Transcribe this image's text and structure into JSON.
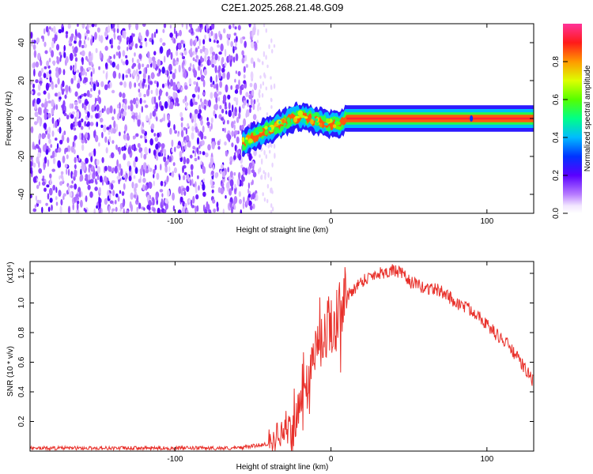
{
  "title": "C2E1.2025.268.21.48.G09",
  "chart_data": [
    {
      "type": "heatmap",
      "xlabel": "Height of straight line (km)",
      "ylabel": "Frequency (Hz)",
      "xlim": [
        -193,
        130
      ],
      "ylim": [
        -50,
        50
      ],
      "xticks": [
        -100,
        0,
        100
      ],
      "xtick_labels": [
        "-100",
        "0",
        "100"
      ],
      "yticks": [
        -40,
        -20,
        0,
        20,
        40
      ],
      "ytick_labels": [
        "-40",
        "-20",
        "0",
        "20",
        "40"
      ],
      "grid": false,
      "colorbar": {
        "label": "Normalized spectral amplitude",
        "range": [
          0,
          1
        ],
        "ticks": [
          0.0,
          0.2,
          0.4,
          0.6,
          0.8
        ],
        "tick_labels": [
          "0.0",
          "0.2",
          "0.4",
          "0.6",
          "0.8"
        ]
      },
      "features": {
        "noise_region_x": [
          -193,
          -48
        ],
        "noise_amplitude": 0.08,
        "signal_ridge": {
          "x": [
            -57,
            -50,
            -45,
            -40,
            -35,
            -30,
            -25,
            -20,
            -15,
            -10,
            -5,
            0,
            5,
            10,
            130
          ],
          "frequency": [
            -13,
            -10,
            -8,
            -6,
            -4,
            -2,
            0,
            1,
            0,
            -1,
            -2,
            -3,
            -3,
            0,
            0
          ],
          "peak_amplitude": 1.0
        },
        "spot": {
          "x": 90,
          "frequency": 0,
          "amplitude": 0.15
        }
      }
    },
    {
      "type": "line",
      "xlabel": "Height of straight line (km)",
      "ylabel": "SNR (10 * v/v)",
      "y_multiplier": "(x10⁴)",
      "xlim": [
        -193,
        130
      ],
      "ylim": [
        0,
        1.28
      ],
      "xticks": [
        -100,
        0,
        100
      ],
      "xtick_labels": [
        "-100",
        "0",
        "100"
      ],
      "yticks": [
        0.2,
        0.4,
        0.6,
        0.8,
        1.0,
        1.2
      ],
      "ytick_labels": [
        "0.2",
        "0.4",
        "0.6",
        "0.8",
        "1.0",
        "1.2"
      ],
      "grid": false,
      "color": "#e8302a",
      "series": [
        {
          "x": [
            -193,
            -150,
            -100,
            -60,
            -40,
            -35,
            -30,
            -25,
            -20,
            -15,
            -10,
            -5,
            0,
            5,
            10,
            15,
            20,
            25,
            30,
            35,
            40,
            45,
            50,
            55,
            60,
            65,
            70,
            75,
            80,
            85,
            90,
            95,
            100,
            105,
            110,
            115,
            120,
            125,
            130
          ],
          "values": [
            0.02,
            0.02,
            0.02,
            0.02,
            0.05,
            0.12,
            0.12,
            0.15,
            0.3,
            0.5,
            0.7,
            0.8,
            0.88,
            0.95,
            1.04,
            1.1,
            1.15,
            1.18,
            1.2,
            1.21,
            1.22,
            1.2,
            1.15,
            1.12,
            1.1,
            1.1,
            1.08,
            1.05,
            1.0,
            0.98,
            0.95,
            0.92,
            0.85,
            0.8,
            0.75,
            0.7,
            0.62,
            0.55,
            0.46
          ]
        }
      ]
    }
  ]
}
